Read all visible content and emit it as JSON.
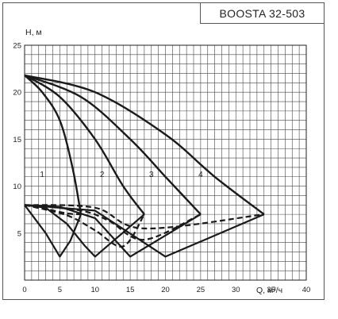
{
  "chart_data": {
    "type": "line",
    "title": "BOOSTA 32-503",
    "xlabel": "Q, м³/ч",
    "ylabel": "H, м",
    "xlim": [
      0,
      40
    ],
    "ylim": [
      0,
      25
    ],
    "xticks": [
      0,
      5,
      10,
      15,
      20,
      25,
      30,
      35,
      40
    ],
    "yticks": [
      5,
      10,
      15,
      20,
      25
    ],
    "grid": true,
    "series": [
      {
        "name": "1",
        "head_curve": [
          [
            0,
            21.8
          ],
          [
            2.5,
            20
          ],
          [
            5,
            17
          ],
          [
            6.8,
            12
          ],
          [
            8,
            7
          ]
        ],
        "power_curve": [
          [
            0,
            8
          ],
          [
            3,
            7.6
          ],
          [
            6,
            7.1
          ],
          [
            8,
            7
          ]
        ],
        "lower_curve": [
          [
            0,
            8
          ],
          [
            3,
            5
          ],
          [
            5,
            2.5
          ],
          [
            6.5,
            4.2
          ],
          [
            8,
            7
          ]
        ]
      },
      {
        "name": "2",
        "head_curve": [
          [
            0,
            21.8
          ],
          [
            5,
            19.5
          ],
          [
            10,
            15
          ],
          [
            14,
            10
          ],
          [
            17,
            7
          ]
        ],
        "power_curve": [
          [
            0,
            8
          ],
          [
            6,
            6.9
          ],
          [
            10,
            5.3
          ],
          [
            14,
            3.6
          ],
          [
            17,
            7
          ]
        ],
        "lower_curve": [
          [
            0,
            8
          ],
          [
            3,
            7.7
          ],
          [
            6,
            6
          ],
          [
            8.5,
            3.7
          ],
          [
            10,
            2.5
          ],
          [
            17,
            7
          ]
        ]
      },
      {
        "name": "3",
        "head_curve": [
          [
            0,
            21.8
          ],
          [
            8,
            19.5
          ],
          [
            15,
            15
          ],
          [
            20,
            11
          ],
          [
            25,
            7
          ]
        ],
        "power_curve": [
          [
            0,
            8
          ],
          [
            8,
            7.4
          ],
          [
            12,
            6.3
          ],
          [
            17,
            4.3
          ],
          [
            25,
            7
          ]
        ],
        "lower_curve": [
          [
            0,
            8
          ],
          [
            5,
            7.8
          ],
          [
            10,
            6.6
          ],
          [
            15,
            2.5
          ],
          [
            25,
            7
          ]
        ]
      },
      {
        "name": "4",
        "head_curve": [
          [
            0,
            21.8
          ],
          [
            10,
            20
          ],
          [
            20,
            15.5
          ],
          [
            27,
            11
          ],
          [
            34,
            7
          ]
        ],
        "power_curve": [
          [
            0,
            8
          ],
          [
            10,
            7.7
          ],
          [
            17,
            5.5
          ],
          [
            34,
            7
          ]
        ],
        "lower_curve": [
          [
            0,
            8
          ],
          [
            10,
            7.4
          ],
          [
            20,
            2.5
          ],
          [
            34,
            7
          ]
        ]
      }
    ]
  }
}
